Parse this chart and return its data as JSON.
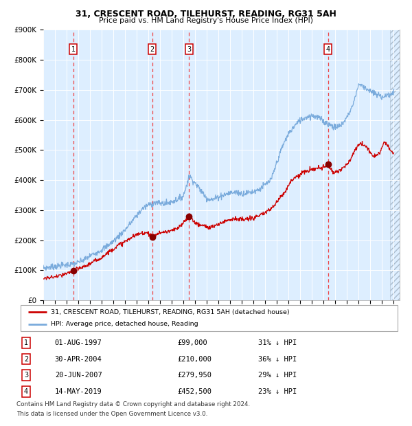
{
  "title1": "31, CRESCENT ROAD, TILEHURST, READING, RG31 5AH",
  "title2": "Price paid vs. HM Land Registry's House Price Index (HPI)",
  "ylim": [
    0,
    900000
  ],
  "yticks": [
    0,
    100000,
    200000,
    300000,
    400000,
    500000,
    600000,
    700000,
    800000,
    900000
  ],
  "ytick_labels": [
    "£0",
    "£100K",
    "£200K",
    "£300K",
    "£400K",
    "£500K",
    "£600K",
    "£700K",
    "£800K",
    "£900K"
  ],
  "xlim_start": 1995.0,
  "xlim_end": 2025.5,
  "sale_dates": [
    1997.58,
    2004.33,
    2007.47,
    2019.37
  ],
  "sale_prices": [
    99000,
    210000,
    279950,
    452500
  ],
  "sale_labels": [
    "1",
    "2",
    "3",
    "4"
  ],
  "sale_date_strings": [
    "01-AUG-1997",
    "30-APR-2004",
    "20-JUN-2007",
    "14-MAY-2019"
  ],
  "sale_price_strings": [
    "£99,000",
    "£210,000",
    "£279,950",
    "£452,500"
  ],
  "sale_hpi_strings": [
    "31% ↓ HPI",
    "36% ↓ HPI",
    "29% ↓ HPI",
    "23% ↓ HPI"
  ],
  "red_line_color": "#cc0000",
  "blue_line_color": "#7aabdc",
  "dot_color": "#880000",
  "dashed_line_color": "#ee4444",
  "plot_bg_color": "#ddeeff",
  "legend_label_red": "31, CRESCENT ROAD, TILEHURST, READING, RG31 5AH (detached house)",
  "legend_label_blue": "HPI: Average price, detached house, Reading",
  "footer1": "Contains HM Land Registry data © Crown copyright and database right 2024.",
  "footer2": "This data is licensed under the Open Government Licence v3.0.",
  "hpi_key_years": [
    1995.0,
    1995.5,
    1996.0,
    1996.5,
    1997.0,
    1997.5,
    1998.0,
    1998.5,
    1999.0,
    1999.5,
    2000.0,
    2000.5,
    2001.0,
    2001.5,
    2002.0,
    2002.5,
    2003.0,
    2003.5,
    2004.0,
    2004.5,
    2005.0,
    2005.5,
    2006.0,
    2006.5,
    2007.0,
    2007.5,
    2008.0,
    2008.5,
    2009.0,
    2009.5,
    2010.0,
    2010.5,
    2011.0,
    2011.5,
    2012.0,
    2012.5,
    2013.0,
    2013.5,
    2014.0,
    2014.5,
    2015.0,
    2015.5,
    2016.0,
    2016.5,
    2017.0,
    2017.5,
    2018.0,
    2018.5,
    2019.0,
    2019.5,
    2020.0,
    2020.5,
    2021.0,
    2021.5,
    2022.0,
    2022.5,
    2023.0,
    2023.5,
    2024.0,
    2024.5,
    2025.0
  ],
  "hpi_key_vals": [
    108000,
    110000,
    113000,
    116000,
    118000,
    120000,
    126000,
    135000,
    148000,
    158000,
    168000,
    182000,
    197000,
    215000,
    235000,
    258000,
    283000,
    305000,
    318000,
    325000,
    323000,
    322000,
    328000,
    336000,
    348000,
    415000,
    390000,
    365000,
    340000,
    335000,
    345000,
    352000,
    358000,
    360000,
    355000,
    358000,
    362000,
    370000,
    385000,
    400000,
    460000,
    515000,
    555000,
    580000,
    600000,
    610000,
    615000,
    610000,
    595000,
    585000,
    575000,
    582000,
    610000,
    650000,
    720000,
    710000,
    695000,
    685000,
    678000,
    682000,
    690000
  ],
  "red_key_years": [
    1995.0,
    1995.5,
    1996.0,
    1996.5,
    1997.0,
    1997.58,
    1998.0,
    1998.5,
    1999.0,
    1999.5,
    2000.0,
    2000.5,
    2001.0,
    2001.5,
    2002.0,
    2002.5,
    2003.0,
    2003.5,
    2004.0,
    2004.33,
    2004.8,
    2005.0,
    2005.5,
    2006.0,
    2006.5,
    2007.0,
    2007.47,
    2007.8,
    2008.2,
    2008.8,
    2009.2,
    2009.8,
    2010.2,
    2010.8,
    2011.2,
    2011.8,
    2012.2,
    2012.8,
    2013.2,
    2013.8,
    2014.2,
    2014.8,
    2015.2,
    2015.8,
    2016.2,
    2016.8,
    2017.2,
    2017.8,
    2018.2,
    2018.8,
    2019.37,
    2019.8,
    2020.2,
    2020.8,
    2021.2,
    2021.8,
    2022.2,
    2022.8,
    2023.2,
    2023.8,
    2024.2,
    2024.8,
    2025.0
  ],
  "red_key_vals": [
    73000,
    75000,
    78000,
    82000,
    88000,
    99000,
    105000,
    112000,
    122000,
    132000,
    143000,
    158000,
    172000,
    185000,
    195000,
    208000,
    218000,
    225000,
    225000,
    210000,
    222000,
    225000,
    228000,
    232000,
    238000,
    258000,
    279950,
    268000,
    252000,
    248000,
    242000,
    248000,
    258000,
    268000,
    272000,
    270000,
    268000,
    272000,
    278000,
    285000,
    298000,
    315000,
    340000,
    368000,
    398000,
    415000,
    425000,
    432000,
    438000,
    440000,
    452500,
    425000,
    430000,
    445000,
    460000,
    510000,
    525000,
    505000,
    480000,
    490000,
    530000,
    495000,
    490000
  ]
}
